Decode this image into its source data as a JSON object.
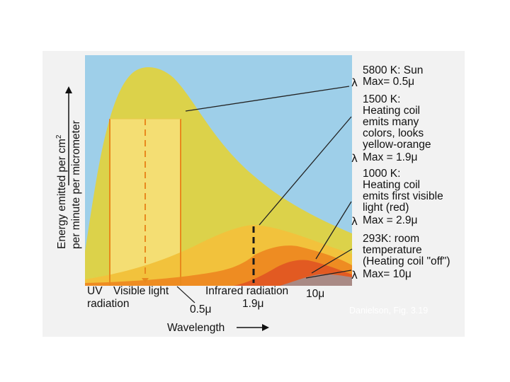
{
  "figure": {
    "y_axis_label_line1": "Energy emitted per cm",
    "y_axis_label_superscript": "2",
    "y_axis_label_line2": "per minute per micrometer",
    "x_axis_label": "Wavelength",
    "band_uv": "UV",
    "band_uv_line2": "radiation",
    "band_visible": "Visible light",
    "band_infrared": "Infrared radiation",
    "tick_0_5": "0.5μ",
    "tick_1_9": "1.9μ",
    "tick_10": "10μ",
    "citation": "Danielson, Fig. 3.19",
    "colors": {
      "panel_bg": "#9ecfe9",
      "sun_curve": "#dcd24a",
      "k1500_curve": "#f2c23c",
      "k1000_curve": "#ee8c22",
      "k293_curve": "#e25a22",
      "room_curve": "#a98a85",
      "visible_band": "#f8e07a",
      "orange_line": "#e8891d"
    }
  },
  "legend": [
    {
      "title": "5800 K: Sun",
      "lines": [],
      "max": "Max= 0.5μ"
    },
    {
      "title": "1500 K:",
      "lines": [
        "Heating coil",
        "emits many",
        "colors, looks",
        "yellow-orange"
      ],
      "max": "Max = 1.9μ"
    },
    {
      "title": "1000 K:",
      "lines": [
        "Heating coil",
        "emits first visible",
        "light (red)"
      ],
      "max": "Max = 2.9μ"
    },
    {
      "title": "293K: room",
      "lines": [
        "temperature",
        "(Heating coil \"off\")"
      ],
      "max": "Max= 10μ"
    }
  ]
}
